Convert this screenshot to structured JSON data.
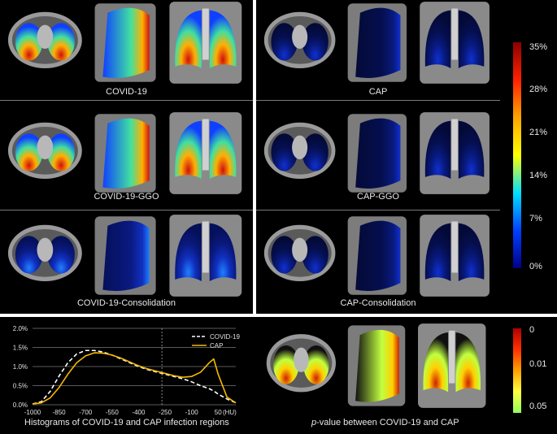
{
  "heatmap_panels": {
    "left": [
      {
        "label": "COVID-19",
        "intensity": "high"
      },
      {
        "label": "COVID-19-GGO",
        "intensity": "high"
      },
      {
        "label": "COVID-19-Consolidation",
        "intensity": "low"
      }
    ],
    "right": [
      {
        "label": "CAP",
        "intensity": "very-low"
      },
      {
        "label": "CAP-GGO",
        "intensity": "very-low"
      },
      {
        "label": "CAP-Consolidation",
        "intensity": "very-low"
      }
    ]
  },
  "colorbar": {
    "ticks": [
      "35%",
      "28%",
      "21%",
      "14%",
      "7%",
      "0%"
    ],
    "colors": [
      "#8b0000",
      "#ff2000",
      "#ffa500",
      "#ffff00",
      "#00e0ff",
      "#0040ff",
      "#00008b"
    ]
  },
  "histogram": {
    "caption": "Histograms of COVID-19 and CAP infection regions",
    "y_ticks": [
      "2.0%",
      "1.5%",
      "1.0%",
      "0.5%",
      "0.0%"
    ],
    "x_ticks": [
      "-1000",
      "-850",
      "-700",
      "-550",
      "-400",
      "-250",
      "-100",
      "50",
      "(HU)"
    ],
    "legend": [
      "COVID-19",
      "CAP"
    ]
  },
  "pvalue": {
    "caption_italic": "p",
    "caption_rest": "-value between COVID-19 and CAP",
    "ticks": [
      "0",
      "0.01",
      "0.05"
    ],
    "colors": [
      "#b00000",
      "#ff3000",
      "#ffa000",
      "#ffff40",
      "#90ff60"
    ]
  },
  "chart_data": {
    "type": "line",
    "title": "Histograms of COVID-19 and CAP infection regions",
    "xlabel": "(HU)",
    "ylabel": "",
    "xlim": [
      -1000,
      150
    ],
    "ylim": [
      0,
      2.0
    ],
    "x": [
      -1000,
      -950,
      -900,
      -850,
      -800,
      -750,
      -700,
      -650,
      -600,
      -550,
      -500,
      -450,
      -400,
      -350,
      -300,
      -250,
      -200,
      -150,
      -100,
      -50,
      0,
      25,
      50,
      100,
      150
    ],
    "series": [
      {
        "name": "COVID-19",
        "style": "dashed",
        "color": "#ffffff",
        "values": [
          0.02,
          0.08,
          0.35,
          0.75,
          1.1,
          1.33,
          1.42,
          1.42,
          1.38,
          1.3,
          1.2,
          1.1,
          1.0,
          0.92,
          0.86,
          0.8,
          0.74,
          0.68,
          0.6,
          0.5,
          0.42,
          0.36,
          0.28,
          0.15,
          0.05
        ]
      },
      {
        "name": "CAP",
        "style": "solid",
        "color": "#f5b800",
        "values": [
          0.02,
          0.05,
          0.18,
          0.45,
          0.8,
          1.1,
          1.28,
          1.36,
          1.35,
          1.3,
          1.22,
          1.12,
          1.02,
          0.94,
          0.88,
          0.82,
          0.76,
          0.72,
          0.74,
          0.85,
          1.1,
          1.2,
          0.8,
          0.2,
          0.05
        ]
      }
    ]
  }
}
